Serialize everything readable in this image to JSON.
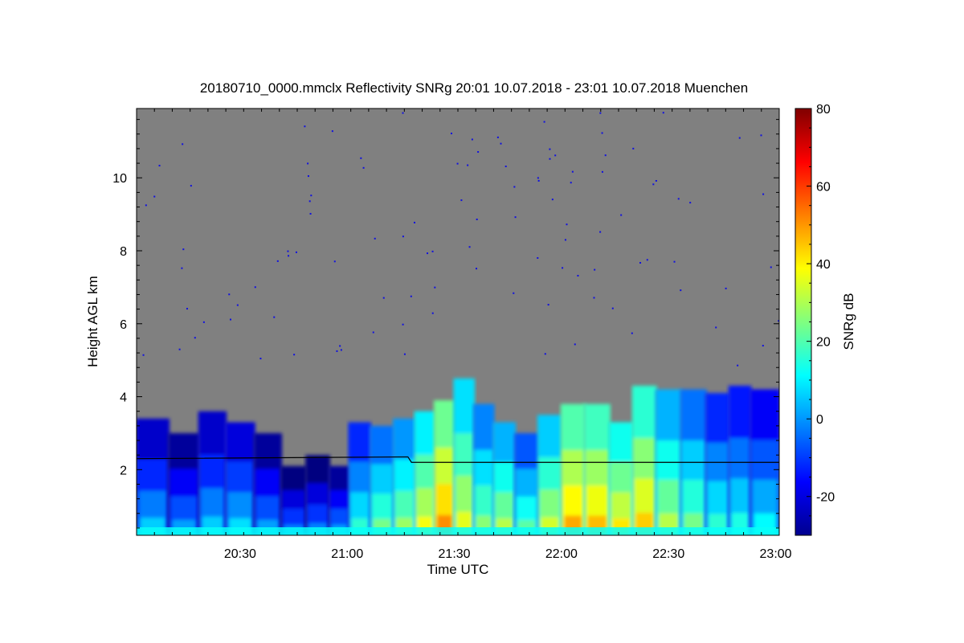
{
  "chart_data": {
    "type": "heatmap",
    "title": "20180710_0000.mmclx Reflectivity SNRg   20:01 10.07.2018 - 23:01 10.07.2018 Muenchen",
    "xlabel": "Time UTC",
    "ylabel": "Height AGL km",
    "x_range": [
      "20:01",
      "23:01"
    ],
    "y_range_km": [
      0.2,
      11.9
    ],
    "x_ticks": [
      "20:30",
      "21:00",
      "21:30",
      "22:00",
      "22:30",
      "23:00"
    ],
    "y_ticks": [
      "2",
      "4",
      "6",
      "8",
      "10"
    ],
    "background_color": "#808080",
    "colorbar": {
      "label": "SNRg dB",
      "range": [
        -30,
        80
      ],
      "ticks": [
        "-20",
        "0",
        "20",
        "40",
        "60",
        "80"
      ],
      "colormap": "jet"
    },
    "boundary_layer_line_km": [
      {
        "time": "20:01",
        "height": 2.3
      },
      {
        "time": "21:17",
        "height": 2.35
      },
      {
        "time": "21:18",
        "height": 2.2
      },
      {
        "time": "22:00",
        "height": 2.2
      },
      {
        "time": "23:01",
        "height": 2.2
      }
    ],
    "echo_columns": [
      {
        "time": "20:05",
        "top_km": 3.4,
        "snr": 0
      },
      {
        "time": "20:15",
        "top_km": 3.0,
        "snr": -5
      },
      {
        "time": "20:22",
        "top_km": 3.6,
        "snr": 0
      },
      {
        "time": "20:30",
        "top_km": 3.3,
        "snr": 2
      },
      {
        "time": "20:38",
        "top_km": 3.0,
        "snr": -5
      },
      {
        "time": "20:45",
        "top_km": 2.1,
        "snr": -8
      },
      {
        "time": "20:52",
        "top_km": 2.4,
        "snr": -8
      },
      {
        "time": "20:58",
        "top_km": 2.1,
        "snr": -5
      },
      {
        "time": "21:03",
        "top_km": 3.3,
        "snr": 10
      },
      {
        "time": "21:10",
        "top_km": 3.2,
        "snr": 18
      },
      {
        "time": "21:16",
        "top_km": 3.4,
        "snr": 22
      },
      {
        "time": "21:22",
        "top_km": 3.6,
        "snr": 32
      },
      {
        "time": "21:27",
        "top_km": 3.9,
        "snr": 45
      },
      {
        "time": "21:33",
        "top_km": 4.5,
        "snr": 30
      },
      {
        "time": "21:38",
        "top_km": 3.8,
        "snr": 20
      },
      {
        "time": "21:44",
        "top_km": 3.3,
        "snr": 25
      },
      {
        "time": "21:50",
        "top_km": 3.0,
        "snr": 15
      },
      {
        "time": "21:57",
        "top_km": 3.5,
        "snr": 28
      },
      {
        "time": "22:03",
        "top_km": 3.8,
        "snr": 42
      },
      {
        "time": "22:10",
        "top_km": 3.8,
        "snr": 40
      },
      {
        "time": "22:17",
        "top_km": 3.3,
        "snr": 35
      },
      {
        "time": "22:23",
        "top_km": 4.3,
        "snr": 38
      },
      {
        "time": "22:30",
        "top_km": 4.2,
        "snr": 25
      },
      {
        "time": "22:37",
        "top_km": 4.2,
        "snr": 18
      },
      {
        "time": "22:44",
        "top_km": 4.1,
        "snr": 10
      },
      {
        "time": "22:50",
        "top_km": 4.3,
        "snr": 8
      },
      {
        "time": "22:56",
        "top_km": 4.2,
        "snr": 5
      }
    ]
  }
}
